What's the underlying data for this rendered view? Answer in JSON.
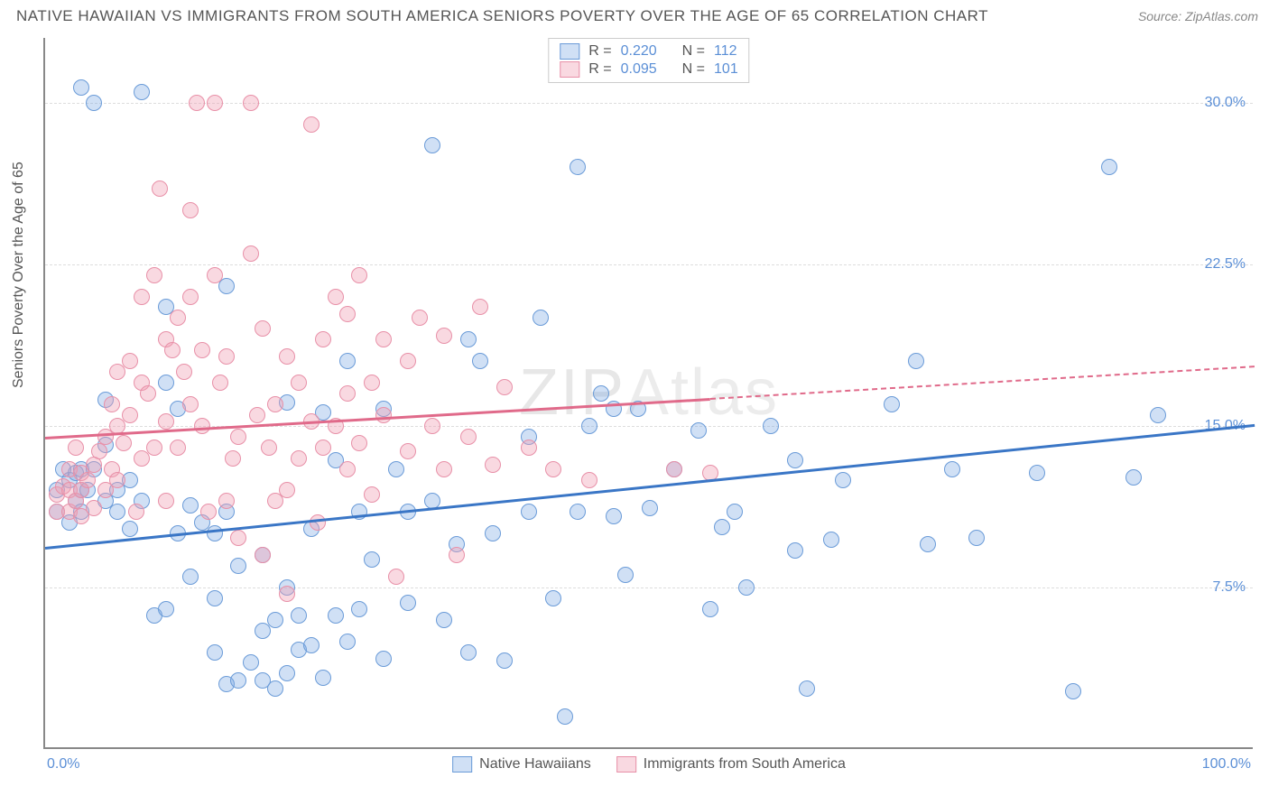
{
  "title": "NATIVE HAWAIIAN VS IMMIGRANTS FROM SOUTH AMERICA SENIORS POVERTY OVER THE AGE OF 65 CORRELATION CHART",
  "source": "Source: ZipAtlas.com",
  "watermark_a": "ZIP",
  "watermark_b": "Atlas",
  "ylabel": "Seniors Poverty Over the Age of 65",
  "axes": {
    "xlim": [
      0,
      100
    ],
    "ylim": [
      0,
      33
    ],
    "yticks": [
      7.5,
      15.0,
      22.5,
      30.0
    ],
    "ytick_labels": [
      "7.5%",
      "15.0%",
      "22.5%",
      "30.0%"
    ],
    "xtick_left": "0.0%",
    "xtick_right": "100.0%",
    "grid_color": "#dddddd",
    "axis_color": "#888888",
    "tick_label_color": "#5b8fd6"
  },
  "series": [
    {
      "id": "native_hawaiians",
      "label": "Native Hawaiians",
      "R": "0.220",
      "N": "112",
      "fill": "rgba(120,165,225,0.35)",
      "stroke": "#6a9bd8",
      "line_color": "#3a76c6",
      "marker_size": 18,
      "trend": {
        "x1": 0,
        "y1": 9.4,
        "x2": 100,
        "y2": 15.1
      },
      "points": [
        [
          1,
          12
        ],
        [
          1,
          11
        ],
        [
          1.5,
          13
        ],
        [
          2,
          12.5
        ],
        [
          2,
          10.5
        ],
        [
          2.5,
          11.5
        ],
        [
          2.5,
          12.8
        ],
        [
          3,
          11
        ],
        [
          3,
          13
        ],
        [
          3,
          12
        ],
        [
          3,
          30.7
        ],
        [
          3.5,
          12
        ],
        [
          4,
          30
        ],
        [
          4,
          13
        ],
        [
          5,
          11.5
        ],
        [
          5,
          14.1
        ],
        [
          5,
          16.2
        ],
        [
          6,
          12
        ],
        [
          6,
          11
        ],
        [
          7,
          12.5
        ],
        [
          7,
          10.2
        ],
        [
          8,
          11.5
        ],
        [
          8,
          30.5
        ],
        [
          9,
          6.2
        ],
        [
          10,
          17
        ],
        [
          10,
          20.5
        ],
        [
          10,
          6.5
        ],
        [
          11,
          10
        ],
        [
          11,
          15.8
        ],
        [
          12,
          8
        ],
        [
          12,
          11.3
        ],
        [
          13,
          10.5
        ],
        [
          14,
          10
        ],
        [
          14,
          7
        ],
        [
          14,
          4.5
        ],
        [
          15,
          3
        ],
        [
          15,
          21.5
        ],
        [
          15,
          11
        ],
        [
          16,
          8.5
        ],
        [
          16,
          3.2
        ],
        [
          17,
          4
        ],
        [
          18,
          9
        ],
        [
          18,
          5.5
        ],
        [
          18,
          3.2
        ],
        [
          19,
          2.8
        ],
        [
          19,
          6
        ],
        [
          20,
          7.5
        ],
        [
          20,
          16.1
        ],
        [
          20,
          3.5
        ],
        [
          21,
          4.6
        ],
        [
          21,
          6.2
        ],
        [
          22,
          4.8
        ],
        [
          22,
          10.2
        ],
        [
          23,
          3.3
        ],
        [
          23,
          15.6
        ],
        [
          24,
          6.2
        ],
        [
          24,
          13.4
        ],
        [
          25,
          5
        ],
        [
          25,
          18
        ],
        [
          26,
          6.5
        ],
        [
          26,
          11
        ],
        [
          27,
          8.8
        ],
        [
          28,
          15.8
        ],
        [
          28,
          4.2
        ],
        [
          29,
          13
        ],
        [
          30,
          11
        ],
        [
          30,
          6.8
        ],
        [
          32,
          28
        ],
        [
          32,
          11.5
        ],
        [
          33,
          6
        ],
        [
          34,
          9.5
        ],
        [
          35,
          19
        ],
        [
          35,
          4.5
        ],
        [
          36,
          18
        ],
        [
          37,
          10
        ],
        [
          38,
          4.1
        ],
        [
          40,
          11
        ],
        [
          40,
          14.5
        ],
        [
          41,
          20
        ],
        [
          42,
          7
        ],
        [
          43,
          1.5
        ],
        [
          44,
          27
        ],
        [
          44,
          11
        ],
        [
          45,
          15
        ],
        [
          46,
          16.5
        ],
        [
          47,
          15.8
        ],
        [
          47,
          10.8
        ],
        [
          48,
          8.1
        ],
        [
          49,
          15.8
        ],
        [
          50,
          11.2
        ],
        [
          52,
          13
        ],
        [
          54,
          14.8
        ],
        [
          55,
          6.5
        ],
        [
          56,
          10.3
        ],
        [
          57,
          11
        ],
        [
          58,
          7.5
        ],
        [
          60,
          15
        ],
        [
          62,
          9.2
        ],
        [
          62,
          13.4
        ],
        [
          63,
          2.8
        ],
        [
          65,
          9.7
        ],
        [
          66,
          12.5
        ],
        [
          70,
          16
        ],
        [
          72,
          18
        ],
        [
          73,
          9.5
        ],
        [
          75,
          13
        ],
        [
          77,
          9.8
        ],
        [
          82,
          12.8
        ],
        [
          85,
          2.7
        ],
        [
          88,
          27
        ],
        [
          90,
          12.6
        ],
        [
          92,
          15.5
        ]
      ]
    },
    {
      "id": "immigrants_sa",
      "label": "Immigrants from South America",
      "R": "0.095",
      "N": "101",
      "fill": "rgba(240,160,180,0.40)",
      "stroke": "#e890a8",
      "line_color": "#e06a8a",
      "marker_size": 18,
      "trend_solid": {
        "x1": 0,
        "y1": 14.5,
        "x2": 55,
        "y2": 16.3
      },
      "trend_dashed": {
        "x1": 55,
        "y1": 16.3,
        "x2": 100,
        "y2": 17.8
      },
      "points": [
        [
          1,
          11
        ],
        [
          1,
          11.8
        ],
        [
          1.5,
          12.2
        ],
        [
          2,
          12
        ],
        [
          2,
          13
        ],
        [
          2,
          11
        ],
        [
          2.5,
          11.5
        ],
        [
          2.5,
          14
        ],
        [
          3,
          12
        ],
        [
          3,
          10.8
        ],
        [
          3,
          12.8
        ],
        [
          3.5,
          12.5
        ],
        [
          4,
          13.2
        ],
        [
          4,
          11.2
        ],
        [
          4.5,
          13.8
        ],
        [
          5,
          14.5
        ],
        [
          5,
          12
        ],
        [
          5.5,
          13
        ],
        [
          5.5,
          16
        ],
        [
          6,
          15
        ],
        [
          6,
          17.5
        ],
        [
          6,
          12.5
        ],
        [
          6.5,
          14.2
        ],
        [
          7,
          18
        ],
        [
          7,
          15.5
        ],
        [
          7.5,
          11
        ],
        [
          8,
          13.5
        ],
        [
          8,
          17
        ],
        [
          8,
          21
        ],
        [
          8.5,
          16.5
        ],
        [
          9,
          14
        ],
        [
          9,
          22
        ],
        [
          9.5,
          26
        ],
        [
          10,
          19
        ],
        [
          10,
          15.2
        ],
        [
          10,
          11.5
        ],
        [
          10.5,
          18.5
        ],
        [
          11,
          20
        ],
        [
          11,
          14
        ],
        [
          11.5,
          17.5
        ],
        [
          12,
          16
        ],
        [
          12,
          25
        ],
        [
          12,
          21
        ],
        [
          12.5,
          30
        ],
        [
          13,
          15
        ],
        [
          13,
          18.5
        ],
        [
          13.5,
          11
        ],
        [
          14,
          22
        ],
        [
          14,
          30
        ],
        [
          14.5,
          17
        ],
        [
          15,
          18.2
        ],
        [
          15,
          11.5
        ],
        [
          15.5,
          13.5
        ],
        [
          16,
          9.8
        ],
        [
          16,
          14.5
        ],
        [
          17,
          30
        ],
        [
          17,
          23
        ],
        [
          17.5,
          15.5
        ],
        [
          18,
          9
        ],
        [
          18,
          19.5
        ],
        [
          18.5,
          14
        ],
        [
          19,
          11.5
        ],
        [
          19,
          16
        ],
        [
          20,
          12
        ],
        [
          20,
          18.2
        ],
        [
          20,
          7.2
        ],
        [
          21,
          13.5
        ],
        [
          21,
          17
        ],
        [
          22,
          29
        ],
        [
          22,
          15.2
        ],
        [
          22.5,
          10.5
        ],
        [
          23,
          14
        ],
        [
          23,
          19
        ],
        [
          24,
          15
        ],
        [
          24,
          21
        ],
        [
          25,
          13
        ],
        [
          25,
          16.5
        ],
        [
          25,
          20.2
        ],
        [
          26,
          22
        ],
        [
          26,
          14.2
        ],
        [
          27,
          17
        ],
        [
          27,
          11.8
        ],
        [
          28,
          15.5
        ],
        [
          28,
          19
        ],
        [
          29,
          8
        ],
        [
          30,
          18
        ],
        [
          30,
          13.8
        ],
        [
          31,
          20
        ],
        [
          32,
          15
        ],
        [
          33,
          13
        ],
        [
          33,
          19.2
        ],
        [
          34,
          9
        ],
        [
          35,
          14.5
        ],
        [
          36,
          20.5
        ],
        [
          37,
          13.2
        ],
        [
          38,
          16.8
        ],
        [
          40,
          14
        ],
        [
          42,
          13
        ],
        [
          45,
          12.5
        ],
        [
          52,
          13
        ],
        [
          55,
          12.8
        ]
      ]
    }
  ],
  "legend_corr": {
    "R_label": "R =",
    "N_label": "N ="
  },
  "bottom_legend": {
    "items": [
      "Native Hawaiians",
      "Immigrants from South America"
    ]
  },
  "colors": {
    "title": "#555555",
    "label": "#555555",
    "source": "#888888"
  }
}
